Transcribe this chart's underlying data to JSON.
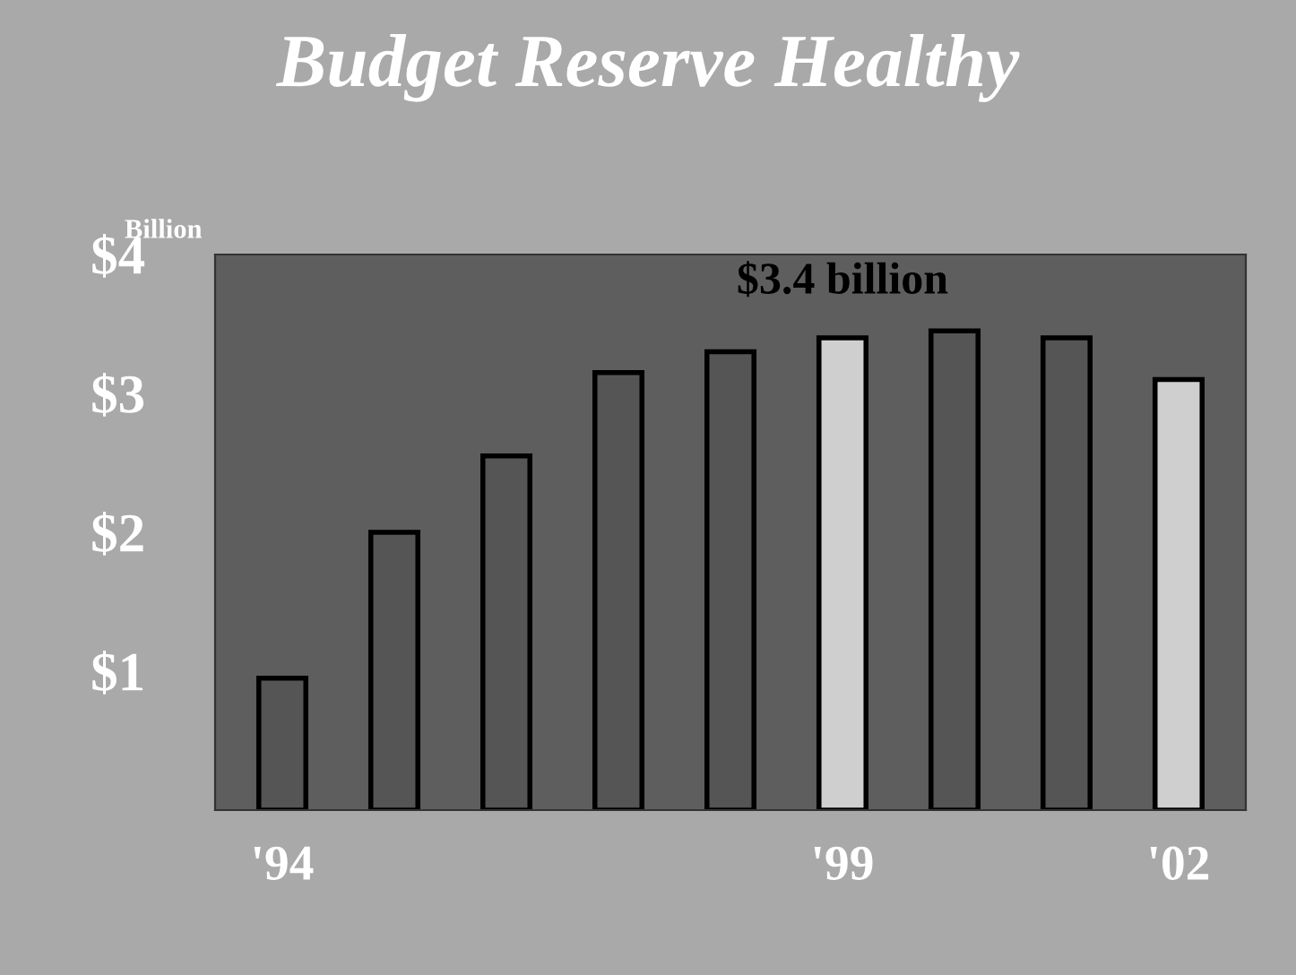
{
  "chart_data": {
    "type": "bar",
    "title": "Budget Reserve Healthy",
    "ylabel": "Billion",
    "categories": [
      "'94",
      null,
      null,
      null,
      null,
      "'99",
      null,
      null,
      "'02"
    ],
    "values": [
      0.95,
      2.0,
      2.55,
      3.15,
      3.3,
      3.4,
      3.45,
      3.4,
      3.1
    ],
    "colors": [
      "#555555",
      "#555555",
      "#555555",
      "#555555",
      "#555555",
      "#cfcfcf",
      "#555555",
      "#555555",
      "#cfcfcf"
    ],
    "ylim": [
      0,
      4
    ],
    "yticks": [
      {
        "value": 1,
        "label": "$1"
      },
      {
        "value": 2,
        "label": "$2"
      },
      {
        "value": 3,
        "label": "$3"
      },
      {
        "value": 4,
        "label": "$4"
      }
    ],
    "annotations": [
      {
        "text": "$3.4 billion",
        "x": "'99",
        "y": 3.4
      }
    ],
    "grid": false,
    "legend": false
  }
}
